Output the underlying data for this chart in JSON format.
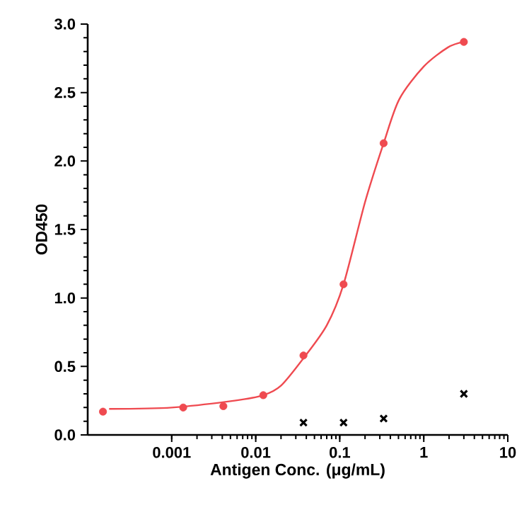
{
  "chart_data": {
    "type": "scatter",
    "xlabel": "Antigen Conc. (μg/mL)",
    "ylabel": "OD450",
    "log": "x",
    "xlim": [
      0.0001,
      10
    ],
    "xticks": [
      0.001,
      0.01,
      0.1,
      1,
      10
    ],
    "ylim": [
      0,
      3
    ],
    "yticks": [
      {
        "value": 0,
        "label": "0.0"
      },
      {
        "value": 0.5,
        "label": "0.5"
      },
      {
        "value": 1,
        "label": "1.0"
      },
      {
        "value": 1.5,
        "label": "1.5"
      },
      {
        "value": 2,
        "label": "2.0"
      },
      {
        "value": 2.5,
        "label": "2.5"
      },
      {
        "value": 3,
        "label": "3.0"
      }
    ],
    "grid": false,
    "series": [
      {
        "marker": "circle",
        "color": "#ef4a50",
        "x": [
          0.000152,
          0.00137,
          0.00412,
          0.0123,
          0.037,
          0.111,
          0.333,
          3
        ],
        "values": [
          0.17,
          0.2,
          0.21,
          0.29,
          0.58,
          1.1,
          2.13,
          2.87
        ]
      },
      {
        "type": "line",
        "marker": "none",
        "color": "#ef4a50",
        "x": [
          0.00018,
          0.001,
          0.0056,
          0.0123,
          0.02,
          0.037,
          0.07,
          0.111,
          0.2,
          0.333,
          0.51,
          1,
          1.94,
          3
        ],
        "values": [
          0.19,
          0.2,
          0.25,
          0.29,
          0.36,
          0.56,
          0.8,
          1.1,
          1.7,
          2.13,
          2.45,
          2.69,
          2.83,
          2.87
        ]
      },
      {
        "marker": "cross",
        "color": "#000000",
        "x": [
          0.037,
          0.111,
          0.333,
          3
        ],
        "values": [
          0.09,
          0.09,
          0.12,
          0.3
        ]
      }
    ]
  }
}
